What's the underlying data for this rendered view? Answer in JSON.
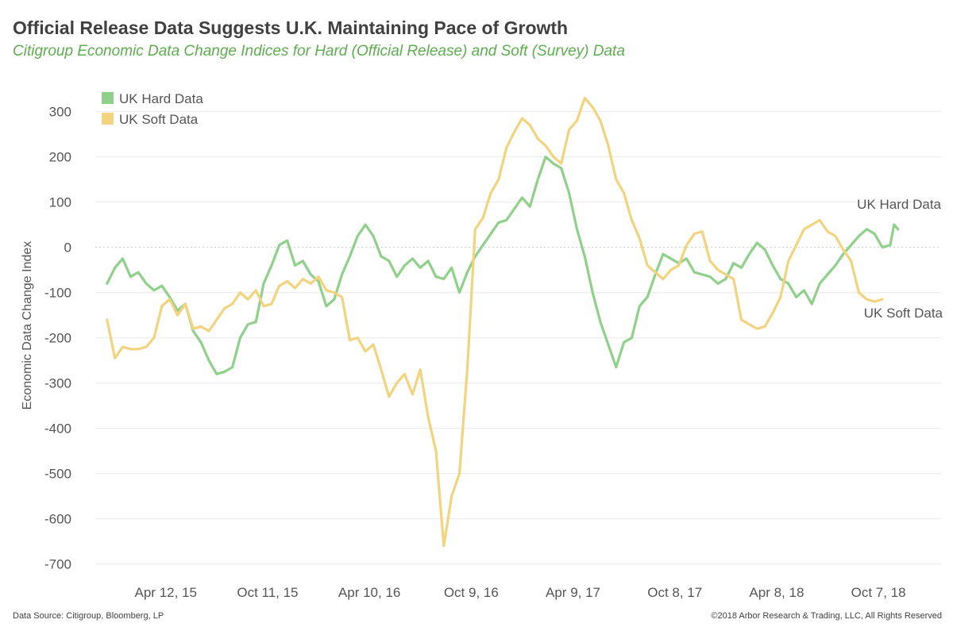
{
  "title": "Official Release Data Suggests U.K. Maintaining Pace of Growth",
  "subtitle": "Citigroup Economic Data Change Indices for Hard (Official Release) and Soft (Survey) Data",
  "footer": {
    "source": "Data Source: Citigroup, Bloomberg, LP",
    "copyright": "©2018 Arbor Research & Trading, LLC, All Rights Reserved"
  },
  "chart_data": {
    "type": "line",
    "ylabel": "Economic Data Change Index",
    "xlabel": "",
    "ylim": [
      -720,
      380
    ],
    "yticks": [
      300,
      200,
      100,
      0,
      -100,
      -200,
      -300,
      -400,
      -500,
      -600,
      -700
    ],
    "xlim": [
      "2014-12-07",
      "2019-01-27"
    ],
    "xticks": [
      {
        "date": "2015-04-12",
        "label": "Apr 12, 15"
      },
      {
        "date": "2015-10-11",
        "label": "Oct 11, 15"
      },
      {
        "date": "2016-04-10",
        "label": "Apr 10, 16"
      },
      {
        "date": "2016-10-09",
        "label": "Oct 9, 16"
      },
      {
        "date": "2017-04-09",
        "label": "Apr 9, 17"
      },
      {
        "date": "2017-10-08",
        "label": "Oct 8, 17"
      },
      {
        "date": "2018-04-08",
        "label": "Apr 8, 18"
      },
      {
        "date": "2018-10-07",
        "label": "Oct 7, 18"
      }
    ],
    "legend_position": "top-left",
    "grid": true,
    "series": [
      {
        "name": "UK Hard Data",
        "end_label": "UK Hard Data",
        "color": "#8fd18a",
        "points": [
          [
            "2014-12-28",
            -80
          ],
          [
            "2015-01-11",
            -45
          ],
          [
            "2015-01-25",
            -25
          ],
          [
            "2015-02-08",
            -65
          ],
          [
            "2015-02-22",
            -55
          ],
          [
            "2015-03-08",
            -80
          ],
          [
            "2015-03-22",
            -95
          ],
          [
            "2015-04-05",
            -85
          ],
          [
            "2015-04-19",
            -110
          ],
          [
            "2015-05-03",
            -140
          ],
          [
            "2015-05-17",
            -125
          ],
          [
            "2015-05-31",
            -185
          ],
          [
            "2015-06-14",
            -210
          ],
          [
            "2015-06-28",
            -250
          ],
          [
            "2015-07-12",
            -280
          ],
          [
            "2015-07-26",
            -275
          ],
          [
            "2015-08-09",
            -265
          ],
          [
            "2015-08-23",
            -200
          ],
          [
            "2015-09-06",
            -170
          ],
          [
            "2015-09-20",
            -165
          ],
          [
            "2015-10-04",
            -80
          ],
          [
            "2015-10-18",
            -40
          ],
          [
            "2015-11-01",
            5
          ],
          [
            "2015-11-15",
            15
          ],
          [
            "2015-11-29",
            -40
          ],
          [
            "2015-12-13",
            -30
          ],
          [
            "2015-12-27",
            -60
          ],
          [
            "2016-01-10",
            -75
          ],
          [
            "2016-01-24",
            -130
          ],
          [
            "2016-02-07",
            -115
          ],
          [
            "2016-02-21",
            -60
          ],
          [
            "2016-03-06",
            -20
          ],
          [
            "2016-03-20",
            25
          ],
          [
            "2016-04-03",
            50
          ],
          [
            "2016-04-17",
            25
          ],
          [
            "2016-05-01",
            -20
          ],
          [
            "2016-05-15",
            -30
          ],
          [
            "2016-05-29",
            -65
          ],
          [
            "2016-06-12",
            -40
          ],
          [
            "2016-06-26",
            -25
          ],
          [
            "2016-07-10",
            -45
          ],
          [
            "2016-07-24",
            -30
          ],
          [
            "2016-08-07",
            -65
          ],
          [
            "2016-08-21",
            -70
          ],
          [
            "2016-09-04",
            -45
          ],
          [
            "2016-09-18",
            -100
          ],
          [
            "2016-10-02",
            -55
          ],
          [
            "2016-10-16",
            -20
          ],
          [
            "2016-10-30",
            5
          ],
          [
            "2016-11-13",
            30
          ],
          [
            "2016-11-27",
            55
          ],
          [
            "2016-12-11",
            60
          ],
          [
            "2016-12-25",
            85
          ],
          [
            "2017-01-08",
            110
          ],
          [
            "2017-01-22",
            90
          ],
          [
            "2017-02-05",
            150
          ],
          [
            "2017-02-19",
            200
          ],
          [
            "2017-03-05",
            185
          ],
          [
            "2017-03-19",
            175
          ],
          [
            "2017-04-02",
            120
          ],
          [
            "2017-04-16",
            40
          ],
          [
            "2017-04-30",
            -20
          ],
          [
            "2017-05-14",
            -100
          ],
          [
            "2017-05-28",
            -165
          ],
          [
            "2017-06-11",
            -215
          ],
          [
            "2017-06-25",
            -265
          ],
          [
            "2017-07-09",
            -210
          ],
          [
            "2017-07-23",
            -200
          ],
          [
            "2017-08-06",
            -130
          ],
          [
            "2017-08-20",
            -110
          ],
          [
            "2017-09-03",
            -60
          ],
          [
            "2017-09-17",
            -15
          ],
          [
            "2017-10-01",
            -25
          ],
          [
            "2017-10-15",
            -35
          ],
          [
            "2017-10-29",
            -25
          ],
          [
            "2017-11-12",
            -55
          ],
          [
            "2017-11-26",
            -60
          ],
          [
            "2017-12-10",
            -65
          ],
          [
            "2017-12-24",
            -80
          ],
          [
            "2018-01-07",
            -70
          ],
          [
            "2018-01-21",
            -35
          ],
          [
            "2018-02-04",
            -45
          ],
          [
            "2018-02-18",
            -15
          ],
          [
            "2018-03-04",
            10
          ],
          [
            "2018-03-18",
            -5
          ],
          [
            "2018-04-01",
            -40
          ],
          [
            "2018-04-15",
            -70
          ],
          [
            "2018-04-29",
            -80
          ],
          [
            "2018-05-13",
            -110
          ],
          [
            "2018-05-27",
            -95
          ],
          [
            "2018-06-10",
            -125
          ],
          [
            "2018-06-24",
            -80
          ],
          [
            "2018-07-08",
            -60
          ],
          [
            "2018-07-22",
            -40
          ],
          [
            "2018-08-05",
            -15
          ],
          [
            "2018-08-19",
            5
          ],
          [
            "2018-09-02",
            25
          ],
          [
            "2018-09-16",
            40
          ],
          [
            "2018-09-30",
            30
          ],
          [
            "2018-10-14",
            0
          ],
          [
            "2018-10-28",
            5
          ],
          [
            "2018-11-04",
            50
          ],
          [
            "2018-11-11",
            40
          ]
        ]
      },
      {
        "name": "UK Soft Data",
        "end_label": "UK Soft Data",
        "color": "#f2d37e",
        "points": [
          [
            "2014-12-28",
            -160
          ],
          [
            "2015-01-11",
            -245
          ],
          [
            "2015-01-25",
            -220
          ],
          [
            "2015-02-08",
            -225
          ],
          [
            "2015-02-22",
            -225
          ],
          [
            "2015-03-08",
            -220
          ],
          [
            "2015-03-22",
            -200
          ],
          [
            "2015-04-05",
            -130
          ],
          [
            "2015-04-19",
            -115
          ],
          [
            "2015-05-03",
            -150
          ],
          [
            "2015-05-17",
            -125
          ],
          [
            "2015-05-31",
            -180
          ],
          [
            "2015-06-14",
            -175
          ],
          [
            "2015-06-28",
            -185
          ],
          [
            "2015-07-12",
            -160
          ],
          [
            "2015-07-26",
            -135
          ],
          [
            "2015-08-09",
            -125
          ],
          [
            "2015-08-23",
            -100
          ],
          [
            "2015-09-06",
            -115
          ],
          [
            "2015-09-20",
            -95
          ],
          [
            "2015-10-04",
            -130
          ],
          [
            "2015-10-18",
            -125
          ],
          [
            "2015-11-01",
            -85
          ],
          [
            "2015-11-15",
            -75
          ],
          [
            "2015-11-29",
            -90
          ],
          [
            "2015-12-13",
            -70
          ],
          [
            "2015-12-27",
            -80
          ],
          [
            "2016-01-10",
            -65
          ],
          [
            "2016-01-24",
            -95
          ],
          [
            "2016-02-07",
            -100
          ],
          [
            "2016-02-21",
            -110
          ],
          [
            "2016-03-06",
            -205
          ],
          [
            "2016-03-20",
            -200
          ],
          [
            "2016-04-03",
            -230
          ],
          [
            "2016-04-17",
            -215
          ],
          [
            "2016-05-01",
            -270
          ],
          [
            "2016-05-15",
            -330
          ],
          [
            "2016-05-29",
            -300
          ],
          [
            "2016-06-12",
            -280
          ],
          [
            "2016-06-26",
            -325
          ],
          [
            "2016-07-10",
            -270
          ],
          [
            "2016-07-24",
            -375
          ],
          [
            "2016-08-07",
            -450
          ],
          [
            "2016-08-21",
            -660
          ],
          [
            "2016-09-04",
            -550
          ],
          [
            "2016-09-18",
            -500
          ],
          [
            "2016-10-02",
            -270
          ],
          [
            "2016-10-16",
            40
          ],
          [
            "2016-10-30",
            65
          ],
          [
            "2016-11-13",
            120
          ],
          [
            "2016-11-27",
            150
          ],
          [
            "2016-12-11",
            220
          ],
          [
            "2016-12-25",
            255
          ],
          [
            "2017-01-08",
            285
          ],
          [
            "2017-01-22",
            270
          ],
          [
            "2017-02-05",
            240
          ],
          [
            "2017-02-19",
            225
          ],
          [
            "2017-03-05",
            200
          ],
          [
            "2017-03-19",
            185
          ],
          [
            "2017-04-02",
            260
          ],
          [
            "2017-04-16",
            280
          ],
          [
            "2017-04-30",
            330
          ],
          [
            "2017-05-14",
            310
          ],
          [
            "2017-05-28",
            280
          ],
          [
            "2017-06-11",
            225
          ],
          [
            "2017-06-25",
            150
          ],
          [
            "2017-07-09",
            120
          ],
          [
            "2017-07-23",
            60
          ],
          [
            "2017-08-06",
            20
          ],
          [
            "2017-08-20",
            -40
          ],
          [
            "2017-09-03",
            -55
          ],
          [
            "2017-09-17",
            -70
          ],
          [
            "2017-10-01",
            -50
          ],
          [
            "2017-10-15",
            -40
          ],
          [
            "2017-10-29",
            5
          ],
          [
            "2017-11-12",
            30
          ],
          [
            "2017-11-26",
            35
          ],
          [
            "2017-12-10",
            -30
          ],
          [
            "2017-12-24",
            -50
          ],
          [
            "2018-01-07",
            -60
          ],
          [
            "2018-01-21",
            -70
          ],
          [
            "2018-02-04",
            -160
          ],
          [
            "2018-02-18",
            -170
          ],
          [
            "2018-03-04",
            -180
          ],
          [
            "2018-03-18",
            -175
          ],
          [
            "2018-04-01",
            -145
          ],
          [
            "2018-04-15",
            -110
          ],
          [
            "2018-04-29",
            -30
          ],
          [
            "2018-05-13",
            5
          ],
          [
            "2018-05-27",
            40
          ],
          [
            "2018-06-10",
            50
          ],
          [
            "2018-06-24",
            60
          ],
          [
            "2018-07-08",
            35
          ],
          [
            "2018-07-22",
            25
          ],
          [
            "2018-08-05",
            -5
          ],
          [
            "2018-08-19",
            -30
          ],
          [
            "2018-09-02",
            -100
          ],
          [
            "2018-09-16",
            -115
          ],
          [
            "2018-09-30",
            -120
          ],
          [
            "2018-10-14",
            -115
          ]
        ]
      }
    ]
  }
}
